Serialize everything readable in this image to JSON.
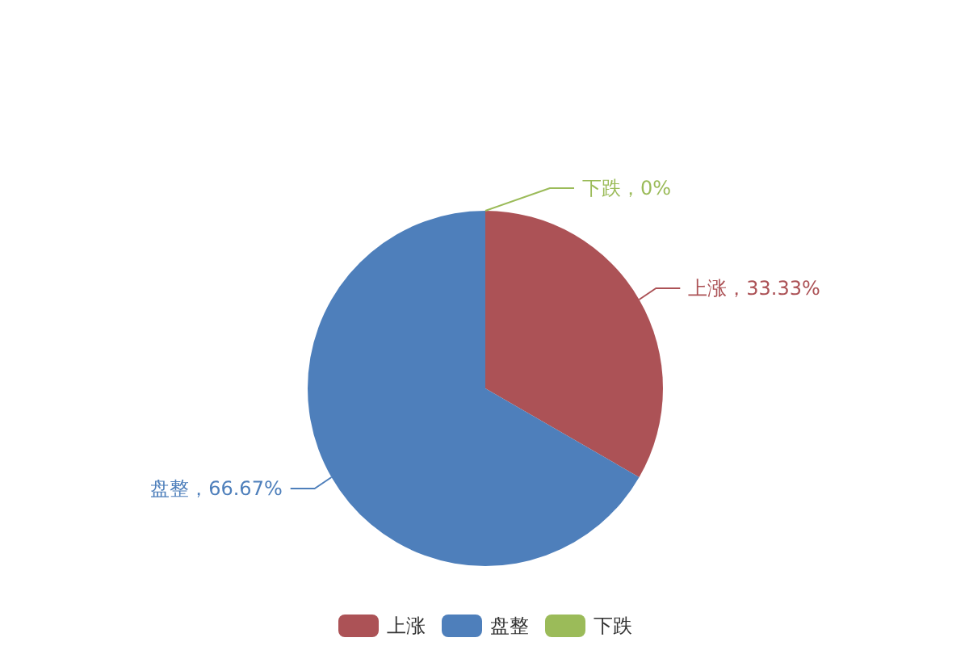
{
  "chart_data": {
    "type": "pie",
    "categories": [
      "上涨",
      "盘整",
      "下跌"
    ],
    "values": [
      33.33,
      66.67,
      0
    ],
    "colors": [
      "#ac5256",
      "#4e7fbb",
      "#9bbb59"
    ],
    "value_labels": [
      "上涨，33.33%",
      "盘整，66.67%",
      "下跌，0%"
    ],
    "legend": "bottom"
  }
}
